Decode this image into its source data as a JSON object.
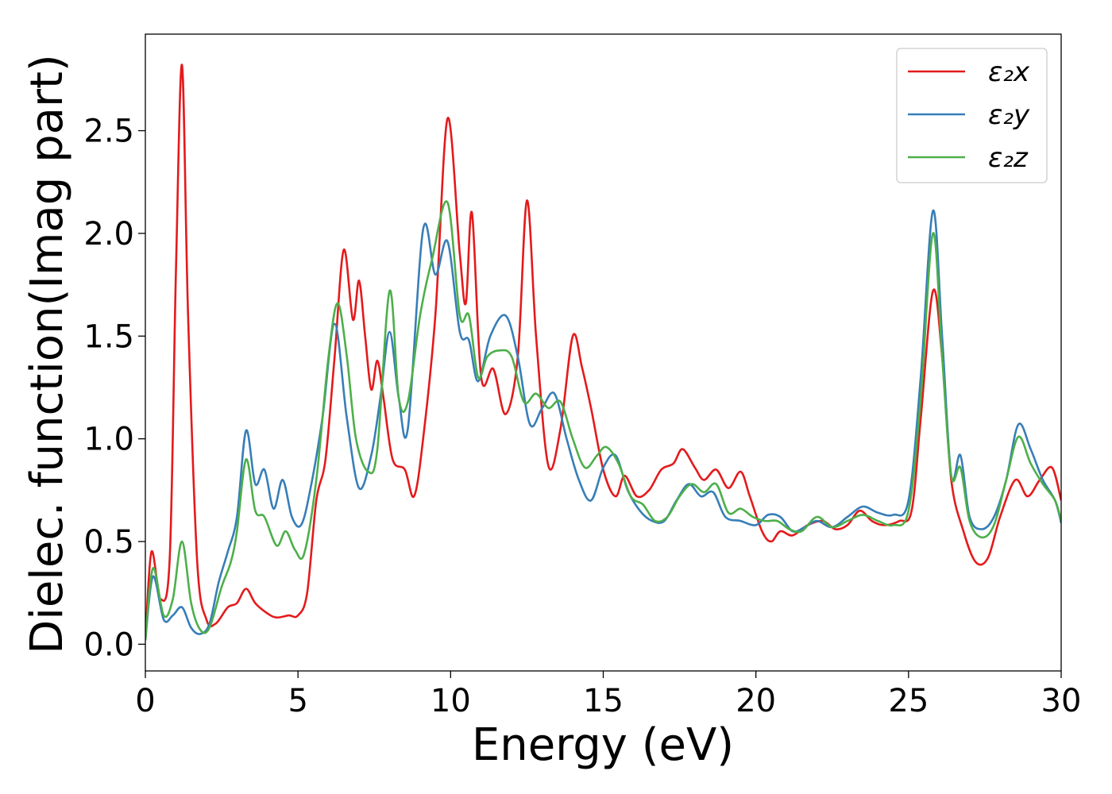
{
  "chart_data": {
    "type": "line",
    "xlabel": "Energy (eV)",
    "ylabel": "Dielec. function(Imag part)",
    "xlim": [
      0,
      30
    ],
    "ylim": [
      -0.13,
      2.97
    ],
    "xticks": [
      0,
      5,
      10,
      15,
      20,
      25,
      30
    ],
    "xtick_labels": [
      "0",
      "5",
      "10",
      "15",
      "20",
      "25",
      "30"
    ],
    "yticks": [
      0.0,
      0.5,
      1.0,
      1.5,
      2.0,
      2.5
    ],
    "ytick_labels": [
      "0.0",
      "0.5",
      "1.0",
      "1.5",
      "2.0",
      "2.5"
    ],
    "legend_position": "top-right",
    "grid": false,
    "series": [
      {
        "name": "ε₂x",
        "color": "#e41a1c",
        "points": [
          [
            0,
            0.02
          ],
          [
            0.2,
            0.45
          ],
          [
            0.5,
            0.22
          ],
          [
            0.8,
            0.42
          ],
          [
            1.0,
            1.8
          ],
          [
            1.2,
            2.82
          ],
          [
            1.4,
            1.6
          ],
          [
            1.7,
            0.4
          ],
          [
            2.0,
            0.12
          ],
          [
            2.3,
            0.1
          ],
          [
            2.7,
            0.18
          ],
          [
            3.0,
            0.2
          ],
          [
            3.3,
            0.27
          ],
          [
            3.6,
            0.2
          ],
          [
            4.0,
            0.15
          ],
          [
            4.3,
            0.13
          ],
          [
            4.7,
            0.14
          ],
          [
            5.0,
            0.14
          ],
          [
            5.3,
            0.25
          ],
          [
            5.6,
            0.7
          ],
          [
            5.9,
            0.9
          ],
          [
            6.2,
            1.4
          ],
          [
            6.5,
            1.92
          ],
          [
            6.8,
            1.58
          ],
          [
            7.0,
            1.77
          ],
          [
            7.2,
            1.5
          ],
          [
            7.4,
            1.24
          ],
          [
            7.6,
            1.38
          ],
          [
            7.8,
            1.2
          ],
          [
            8.1,
            0.9
          ],
          [
            8.5,
            0.85
          ],
          [
            8.8,
            0.72
          ],
          [
            9.1,
            1.0
          ],
          [
            9.5,
            1.6
          ],
          [
            9.9,
            2.56
          ],
          [
            10.3,
            1.9
          ],
          [
            10.5,
            1.66
          ],
          [
            10.7,
            2.1
          ],
          [
            11.0,
            1.3
          ],
          [
            11.4,
            1.34
          ],
          [
            11.8,
            1.12
          ],
          [
            12.2,
            1.4
          ],
          [
            12.5,
            2.16
          ],
          [
            12.8,
            1.5
          ],
          [
            13.2,
            0.87
          ],
          [
            13.6,
            1.05
          ],
          [
            14.0,
            1.5
          ],
          [
            14.3,
            1.35
          ],
          [
            14.6,
            1.15
          ],
          [
            15.0,
            0.85
          ],
          [
            15.4,
            0.72
          ],
          [
            15.7,
            0.82
          ],
          [
            16.1,
            0.72
          ],
          [
            16.5,
            0.75
          ],
          [
            16.9,
            0.85
          ],
          [
            17.3,
            0.88
          ],
          [
            17.6,
            0.95
          ],
          [
            18.0,
            0.86
          ],
          [
            18.3,
            0.8
          ],
          [
            18.7,
            0.85
          ],
          [
            19.1,
            0.76
          ],
          [
            19.5,
            0.84
          ],
          [
            19.8,
            0.72
          ],
          [
            20.2,
            0.55
          ],
          [
            20.5,
            0.5
          ],
          [
            20.8,
            0.55
          ],
          [
            21.2,
            0.53
          ],
          [
            21.7,
            0.58
          ],
          [
            22.2,
            0.6
          ],
          [
            22.6,
            0.56
          ],
          [
            23.0,
            0.58
          ],
          [
            23.4,
            0.65
          ],
          [
            23.8,
            0.6
          ],
          [
            24.2,
            0.58
          ],
          [
            24.7,
            0.6
          ],
          [
            25.1,
            0.65
          ],
          [
            25.4,
            1.1
          ],
          [
            25.8,
            1.72
          ],
          [
            26.1,
            1.4
          ],
          [
            26.4,
            0.8
          ],
          [
            26.8,
            0.55
          ],
          [
            27.2,
            0.4
          ],
          [
            27.6,
            0.42
          ],
          [
            28.0,
            0.62
          ],
          [
            28.5,
            0.8
          ],
          [
            28.9,
            0.72
          ],
          [
            29.3,
            0.8
          ],
          [
            29.7,
            0.86
          ],
          [
            30.0,
            0.7
          ]
        ]
      },
      {
        "name": "ε₂y",
        "color": "#377eb8",
        "points": [
          [
            0,
            0.02
          ],
          [
            0.25,
            0.33
          ],
          [
            0.6,
            0.12
          ],
          [
            0.9,
            0.14
          ],
          [
            1.2,
            0.18
          ],
          [
            1.5,
            0.08
          ],
          [
            1.8,
            0.05
          ],
          [
            2.1,
            0.1
          ],
          [
            2.4,
            0.3
          ],
          [
            2.7,
            0.45
          ],
          [
            3.0,
            0.62
          ],
          [
            3.3,
            1.04
          ],
          [
            3.6,
            0.78
          ],
          [
            3.9,
            0.85
          ],
          [
            4.2,
            0.66
          ],
          [
            4.5,
            0.8
          ],
          [
            4.8,
            0.62
          ],
          [
            5.1,
            0.58
          ],
          [
            5.4,
            0.75
          ],
          [
            5.8,
            1.1
          ],
          [
            6.2,
            1.56
          ],
          [
            6.6,
            1.1
          ],
          [
            7.0,
            0.76
          ],
          [
            7.4,
            0.92
          ],
          [
            7.7,
            1.2
          ],
          [
            8.0,
            1.52
          ],
          [
            8.3,
            1.2
          ],
          [
            8.6,
            1.05
          ],
          [
            9.1,
            2.02
          ],
          [
            9.5,
            1.8
          ],
          [
            9.9,
            1.96
          ],
          [
            10.3,
            1.52
          ],
          [
            10.6,
            1.48
          ],
          [
            10.9,
            1.28
          ],
          [
            11.3,
            1.5
          ],
          [
            11.8,
            1.6
          ],
          [
            12.2,
            1.4
          ],
          [
            12.6,
            1.07
          ],
          [
            13.0,
            1.15
          ],
          [
            13.4,
            1.22
          ],
          [
            13.8,
            1.0
          ],
          [
            14.2,
            0.8
          ],
          [
            14.6,
            0.7
          ],
          [
            15.0,
            0.86
          ],
          [
            15.4,
            0.92
          ],
          [
            15.8,
            0.75
          ],
          [
            16.2,
            0.65
          ],
          [
            16.6,
            0.6
          ],
          [
            17.0,
            0.6
          ],
          [
            17.4,
            0.7
          ],
          [
            17.8,
            0.78
          ],
          [
            18.2,
            0.72
          ],
          [
            18.6,
            0.74
          ],
          [
            19.0,
            0.62
          ],
          [
            19.5,
            0.6
          ],
          [
            20.0,
            0.58
          ],
          [
            20.4,
            0.63
          ],
          [
            20.8,
            0.62
          ],
          [
            21.2,
            0.55
          ],
          [
            21.6,
            0.57
          ],
          [
            22.0,
            0.6
          ],
          [
            22.5,
            0.57
          ],
          [
            23.0,
            0.62
          ],
          [
            23.5,
            0.67
          ],
          [
            24.0,
            0.64
          ],
          [
            24.5,
            0.63
          ],
          [
            25.0,
            0.7
          ],
          [
            25.4,
            1.3
          ],
          [
            25.8,
            2.11
          ],
          [
            26.1,
            1.5
          ],
          [
            26.4,
            0.82
          ],
          [
            26.7,
            0.92
          ],
          [
            27.0,
            0.62
          ],
          [
            27.4,
            0.56
          ],
          [
            27.8,
            0.62
          ],
          [
            28.2,
            0.8
          ],
          [
            28.6,
            1.07
          ],
          [
            29.0,
            0.95
          ],
          [
            29.4,
            0.8
          ],
          [
            29.8,
            0.7
          ],
          [
            30.0,
            0.59
          ]
        ]
      },
      {
        "name": "ε₂z",
        "color": "#4daf4a",
        "points": [
          [
            0,
            0.02
          ],
          [
            0.25,
            0.37
          ],
          [
            0.6,
            0.14
          ],
          [
            0.9,
            0.22
          ],
          [
            1.2,
            0.5
          ],
          [
            1.5,
            0.2
          ],
          [
            1.8,
            0.07
          ],
          [
            2.1,
            0.08
          ],
          [
            2.5,
            0.28
          ],
          [
            2.8,
            0.4
          ],
          [
            3.0,
            0.55
          ],
          [
            3.3,
            0.9
          ],
          [
            3.6,
            0.65
          ],
          [
            3.9,
            0.62
          ],
          [
            4.3,
            0.48
          ],
          [
            4.6,
            0.55
          ],
          [
            4.9,
            0.46
          ],
          [
            5.2,
            0.44
          ],
          [
            5.6,
            0.8
          ],
          [
            6.0,
            1.4
          ],
          [
            6.3,
            1.66
          ],
          [
            6.6,
            1.4
          ],
          [
            6.9,
            1.0
          ],
          [
            7.3,
            0.84
          ],
          [
            7.6,
            0.95
          ],
          [
            8.0,
            1.72
          ],
          [
            8.3,
            1.2
          ],
          [
            8.6,
            1.18
          ],
          [
            9.0,
            1.6
          ],
          [
            9.4,
            1.88
          ],
          [
            9.9,
            2.15
          ],
          [
            10.3,
            1.6
          ],
          [
            10.6,
            1.6
          ],
          [
            10.9,
            1.3
          ],
          [
            11.2,
            1.4
          ],
          [
            11.6,
            1.43
          ],
          [
            12.0,
            1.4
          ],
          [
            12.4,
            1.18
          ],
          [
            12.8,
            1.22
          ],
          [
            13.2,
            1.15
          ],
          [
            13.6,
            1.18
          ],
          [
            14.0,
            1.0
          ],
          [
            14.4,
            0.86
          ],
          [
            14.8,
            0.92
          ],
          [
            15.1,
            0.96
          ],
          [
            15.5,
            0.88
          ],
          [
            15.9,
            0.72
          ],
          [
            16.3,
            0.68
          ],
          [
            16.7,
            0.6
          ],
          [
            17.1,
            0.62
          ],
          [
            17.5,
            0.72
          ],
          [
            17.9,
            0.78
          ],
          [
            18.3,
            0.74
          ],
          [
            18.7,
            0.78
          ],
          [
            19.1,
            0.64
          ],
          [
            19.5,
            0.66
          ],
          [
            19.9,
            0.62
          ],
          [
            20.3,
            0.6
          ],
          [
            20.7,
            0.6
          ],
          [
            21.1,
            0.56
          ],
          [
            21.5,
            0.55
          ],
          [
            22.0,
            0.62
          ],
          [
            22.5,
            0.57
          ],
          [
            23.0,
            0.6
          ],
          [
            23.5,
            0.63
          ],
          [
            24.0,
            0.6
          ],
          [
            24.5,
            0.58
          ],
          [
            25.0,
            0.65
          ],
          [
            25.4,
            1.2
          ],
          [
            25.8,
            2.0
          ],
          [
            26.1,
            1.4
          ],
          [
            26.4,
            0.82
          ],
          [
            26.7,
            0.86
          ],
          [
            27.0,
            0.6
          ],
          [
            27.4,
            0.52
          ],
          [
            27.8,
            0.58
          ],
          [
            28.2,
            0.8
          ],
          [
            28.6,
            1.01
          ],
          [
            29.0,
            0.88
          ],
          [
            29.4,
            0.78
          ],
          [
            29.8,
            0.7
          ],
          [
            30.0,
            0.6
          ]
        ]
      }
    ]
  }
}
